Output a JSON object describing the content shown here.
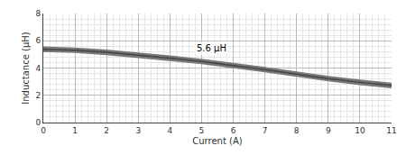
{
  "chart_data": {
    "type": "line",
    "xlabel": "Current (A)",
    "ylabel": "Inductance (μH)",
    "x": [
      0,
      1,
      2,
      3,
      4,
      5,
      6,
      7,
      8,
      9,
      10,
      11
    ],
    "series": [
      {
        "type": "band",
        "color": "#777777",
        "upper": [
          5.58,
          5.5,
          5.35,
          5.15,
          4.92,
          4.68,
          4.4,
          4.08,
          3.75,
          3.42,
          3.15,
          2.92
        ],
        "lower": [
          5.18,
          5.1,
          4.95,
          4.75,
          4.52,
          4.28,
          4.0,
          3.68,
          3.35,
          3.02,
          2.75,
          2.52
        ]
      },
      {
        "type": "line",
        "color": "#444444",
        "values": [
          5.38,
          5.3,
          5.15,
          4.95,
          4.72,
          4.48,
          4.2,
          3.88,
          3.55,
          3.22,
          2.95,
          2.72
        ]
      }
    ],
    "annotations": [
      {
        "text": "5.6 μH",
        "x": 4.8,
        "y": 4.95
      }
    ],
    "xlim": [
      0,
      11
    ],
    "ylim": [
      0,
      8
    ],
    "xticks": [
      0,
      1,
      2,
      3,
      4,
      5,
      6,
      7,
      8,
      9,
      10,
      11
    ],
    "yticks": [
      0,
      2,
      4,
      6,
      8
    ],
    "grid": true
  }
}
